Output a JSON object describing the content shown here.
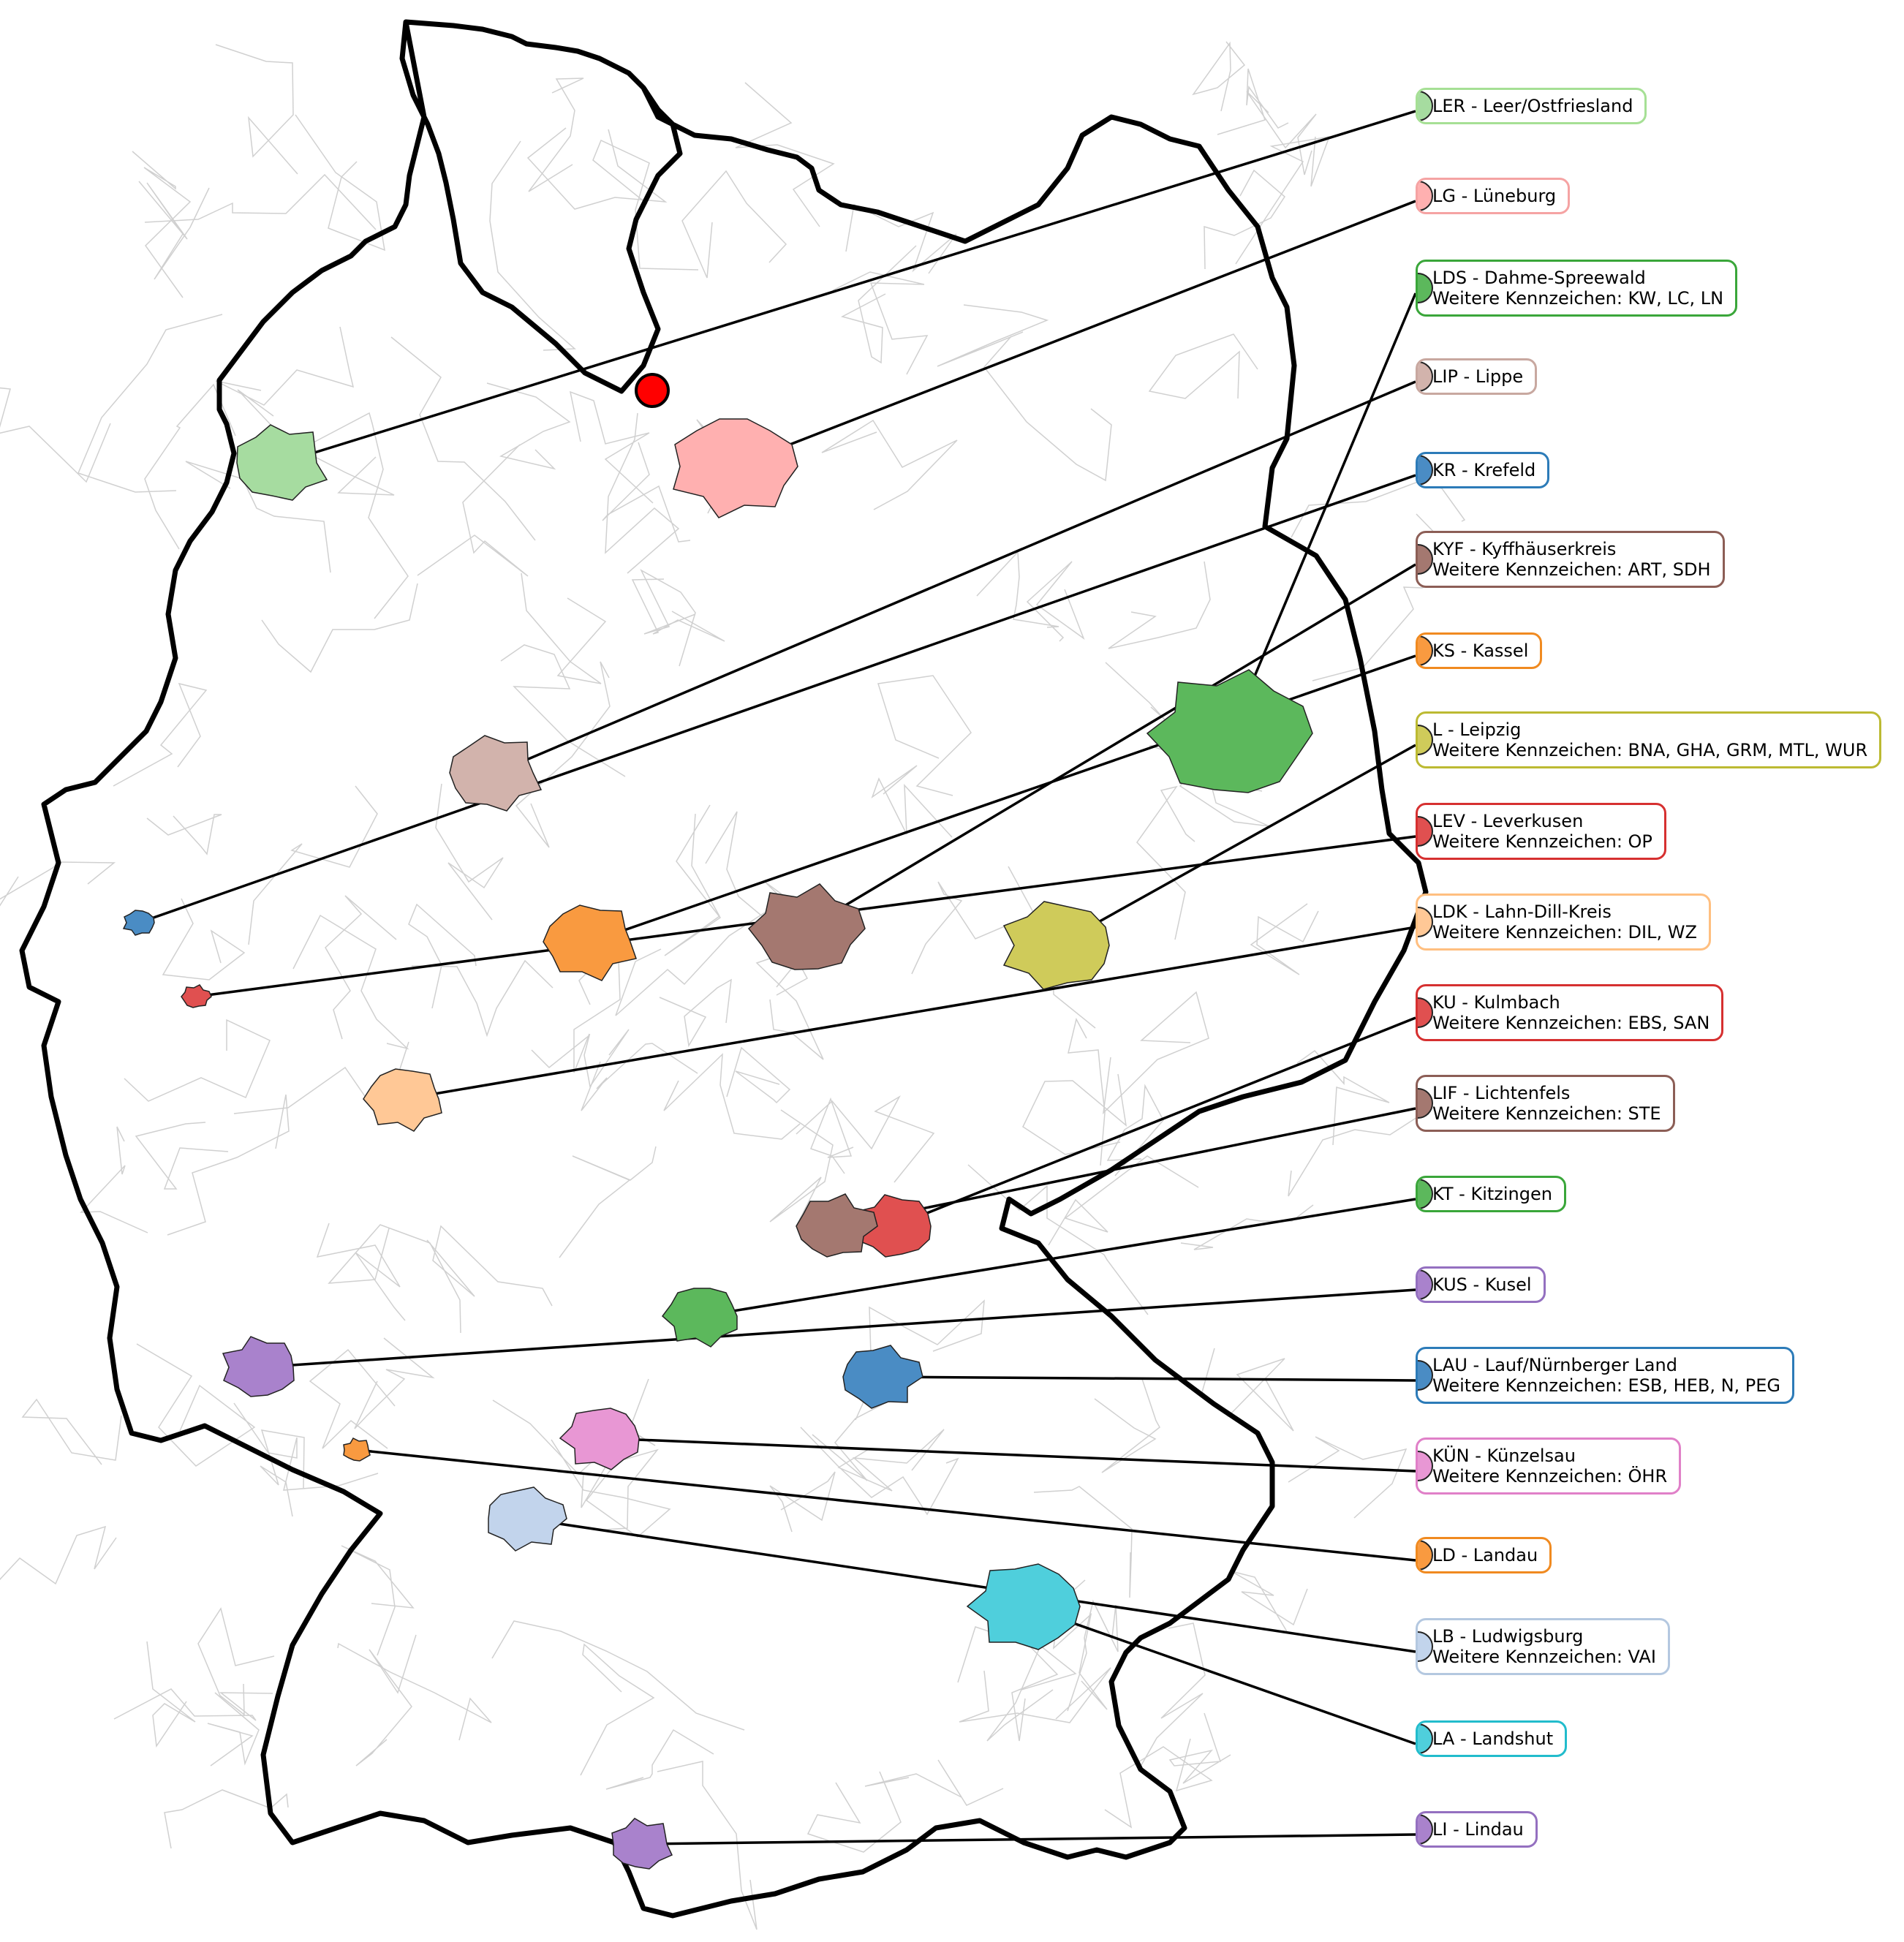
{
  "map": {
    "start_marker_color": "#ff0000",
    "border_color": "#000000",
    "district_grid_color": "#cfcfcf",
    "connector_color": "#000000"
  },
  "districts": [
    {
      "code": "LER",
      "title": "LER - Leer/Ostfriesland",
      "extra": "",
      "color": "#a6dca0",
      "border": "#a6e095"
    },
    {
      "code": "LG",
      "title": "LG - Lüneburg",
      "extra": "",
      "color": "#ffb0b0",
      "border": "#f5a3a3"
    },
    {
      "code": "LDS",
      "title": "LDS - Dahme-Spreewald",
      "extra": "Weitere Kennzeichen: KW, LC, LN",
      "color": "#5cb85c",
      "border": "#3aa63a"
    },
    {
      "code": "LIP",
      "title": "LIP - Lippe",
      "extra": "",
      "color": "#d2b3ac",
      "border": "#c8a8a0"
    },
    {
      "code": "KR",
      "title": "KR - Krefeld",
      "extra": "",
      "color": "#4a8cc4",
      "border": "#2c7bb8"
    },
    {
      "code": "KYF",
      "title": "KYF - Kyffhäuserkreis",
      "extra": "Weitere Kennzeichen: ART, SDH",
      "color": "#a47870",
      "border": "#8c5e56"
    },
    {
      "code": "KS",
      "title": "KS - Kassel",
      "extra": "",
      "color": "#f99a40",
      "border": "#f08a20"
    },
    {
      "code": "L",
      "title": "L - Leipzig",
      "extra": "Weitere Kennzeichen: BNA, GHA, GRM, MTL, WUR",
      "color": "#cfcb5a",
      "border": "#bcba32"
    },
    {
      "code": "LEV",
      "title": "LEV - Leverkusen",
      "extra": "Weitere Kennzeichen: OP",
      "color": "#e05050",
      "border": "#d63030"
    },
    {
      "code": "LDK",
      "title": "LDK - Lahn-Dill-Kreis",
      "extra": "Weitere Kennzeichen: DIL, WZ",
      "color": "#ffc896",
      "border": "#ffbf80"
    },
    {
      "code": "KU",
      "title": "KU - Kulmbach",
      "extra": "Weitere Kennzeichen: EBS, SAN",
      "color": "#e05050",
      "border": "#d63030"
    },
    {
      "code": "LIF",
      "title": "LIF - Lichtenfels",
      "extra": "Weitere Kennzeichen: STE",
      "color": "#a47870",
      "border": "#8c5e56"
    },
    {
      "code": "KT",
      "title": "KT - Kitzingen",
      "extra": "",
      "color": "#5cb85c",
      "border": "#3aa63a"
    },
    {
      "code": "KUS",
      "title": "KUS - Kusel",
      "extra": "",
      "color": "#a982cc",
      "border": "#9470c0"
    },
    {
      "code": "LAU",
      "title": "LAU - Lauf/Nürnberger Land",
      "extra": "Weitere Kennzeichen: ESB, HEB, N, PEG",
      "color": "#4a8cc4",
      "border": "#2c7bb8"
    },
    {
      "code": "KÜN",
      "title": "KÜN - Künzelsau",
      "extra": "Weitere Kennzeichen: ÖHR",
      "color": "#e897d4",
      "border": "#e080c8"
    },
    {
      "code": "LD",
      "title": "LD - Landau",
      "extra": "",
      "color": "#f99a40",
      "border": "#f08a20"
    },
    {
      "code": "LB",
      "title": "LB - Ludwigsburg",
      "extra": "Weitere Kennzeichen: VAI",
      "color": "#c2d4ec",
      "border": "#b4c8e0"
    },
    {
      "code": "LA",
      "title": "LA - Landshut",
      "extra": "",
      "color": "#4fcfdc",
      "border": "#22bccc"
    },
    {
      "code": "LI",
      "title": "LI - Lindau",
      "extra": "",
      "color": "#a982cc",
      "border": "#9470c0"
    }
  ]
}
